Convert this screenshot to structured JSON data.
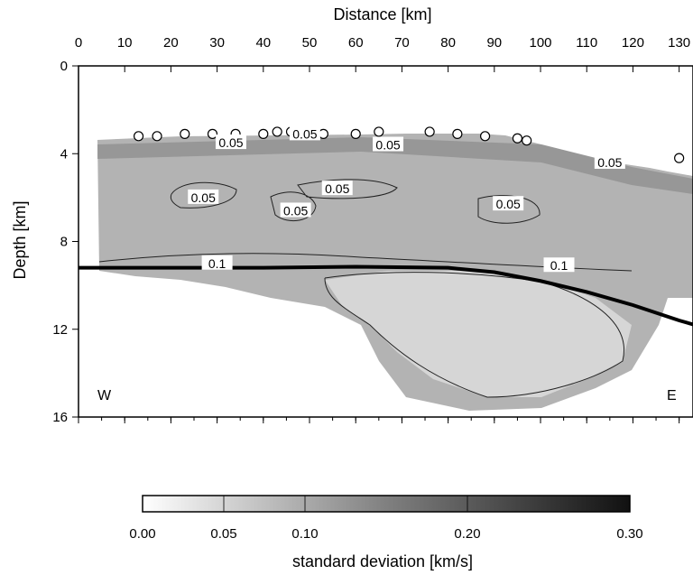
{
  "chart_data": {
    "type": "heatmap",
    "title": "",
    "xlabel": "Distance [km]",
    "ylabel": "Depth [km]",
    "x_ticks": [
      0,
      10,
      20,
      30,
      40,
      50,
      60,
      70,
      80,
      90,
      100,
      110,
      120,
      130
    ],
    "y_ticks": [
      0,
      4,
      8,
      12,
      16
    ],
    "xlim": [
      0,
      133
    ],
    "ylim": [
      16,
      0
    ],
    "y_reversed": true,
    "grid": false,
    "corner_labels": {
      "west": "W",
      "east": "E"
    },
    "colorbar": {
      "label": "standard deviation [km/s]",
      "ticks": [
        0.0,
        0.05,
        0.1,
        0.2,
        0.3
      ],
      "tick_labels": [
        "0.00",
        "0.05",
        "0.10",
        "0.20",
        "0.30"
      ],
      "range": [
        0,
        0.3
      ],
      "colors": [
        "#ffffff",
        "#000000"
      ]
    },
    "contour_labels": [
      {
        "text": "0.05",
        "x": 33,
        "y": 3.5
      },
      {
        "text": "0.05",
        "x": 49,
        "y": 3.1
      },
      {
        "text": "0.05",
        "x": 67,
        "y": 3.6
      },
      {
        "text": "0.05",
        "x": 115,
        "y": 4.4
      },
      {
        "text": "0.05",
        "x": 27,
        "y": 6.0
      },
      {
        "text": "0.05",
        "x": 47,
        "y": 6.6
      },
      {
        "text": "0.05",
        "x": 56,
        "y": 5.6
      },
      {
        "text": "0.05",
        "x": 93,
        "y": 6.3
      },
      {
        "text": "0.1",
        "x": 30,
        "y": 9.0
      },
      {
        "text": "0.1",
        "x": 104,
        "y": 9.1
      }
    ],
    "moho_line": {
      "x": [
        0,
        20,
        40,
        60,
        80,
        90,
        100,
        110,
        120,
        130,
        135
      ],
      "y": [
        9.2,
        9.2,
        9.2,
        9.15,
        9.2,
        9.4,
        9.8,
        10.3,
        10.9,
        11.6,
        11.9
      ]
    },
    "stations": {
      "x": [
        13,
        17,
        23,
        29,
        34,
        40,
        43,
        46,
        49,
        53,
        60,
        65,
        76,
        82,
        88,
        95,
        97,
        130
      ],
      "y": [
        3.2,
        3.2,
        3.1,
        3.1,
        3.1,
        3.1,
        3.0,
        3.0,
        3.0,
        3.1,
        3.1,
        3.0,
        3.0,
        3.1,
        3.2,
        3.3,
        3.4,
        4.2
      ]
    }
  }
}
